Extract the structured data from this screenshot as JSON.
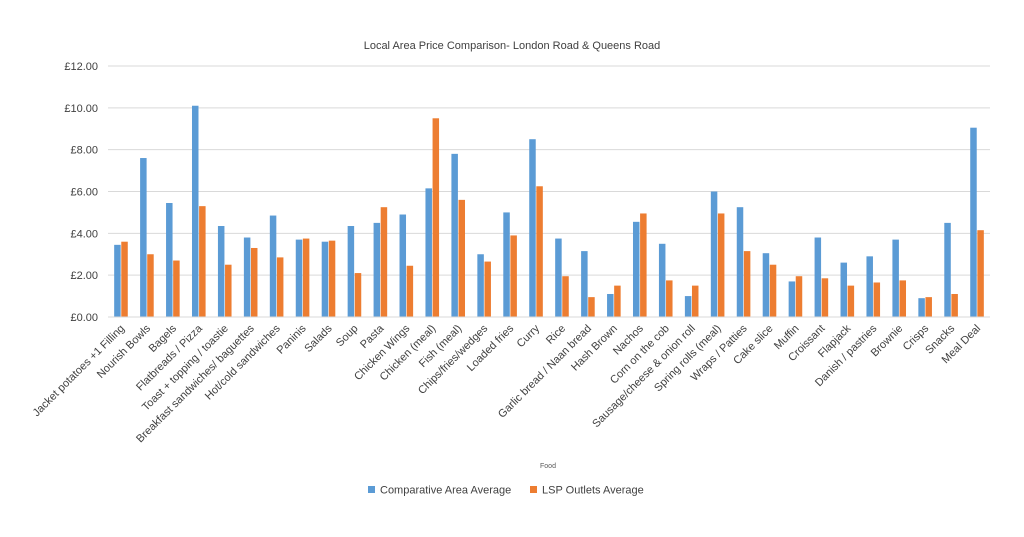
{
  "chart_data": {
    "type": "bar",
    "title": "Local Area Price Comparison- London Road & Queens Road",
    "xlabel": "Food",
    "ylabel": "",
    "ylim": [
      0,
      12
    ],
    "yticks": [
      "£0.00",
      "£2.00",
      "£4.00",
      "£6.00",
      "£8.00",
      "£10.00",
      "£12.00"
    ],
    "grid": true,
    "legend_position": "bottom",
    "categories": [
      "Jacket potatoes +1 Filling",
      "Nourish Bowls",
      "Bagels",
      "Flatbreads / Pizza",
      "Toast + topping / toastie",
      "Breakfast sandwiches/ baguettes",
      "Hot/cold sandwiches",
      "Paninis",
      "Salads",
      "Soup",
      "Pasta",
      "Chicken Wings",
      "Chicken (meal)",
      "Fish (meal)",
      "Chips/fries/wedges",
      "Loaded fries",
      "Curry",
      "Rice",
      "Garlic bread / Naan bread",
      "Hash Brown",
      "Nachos",
      "Corn on the cob",
      "Sausage/cheese & onion roll",
      "Spring rolls (meal)",
      "Wraps / Patties",
      "Cake slice",
      "Muffin",
      "Croissant",
      "Flapjack",
      "Danish / pastries",
      "Brownie",
      "Crisps",
      "Snacks",
      "Meal Deal"
    ],
    "series": [
      {
        "name": "Comparative Area Average",
        "color": "#5b9bd5",
        "values": [
          3.45,
          7.6,
          5.45,
          10.1,
          4.35,
          3.8,
          4.85,
          3.7,
          3.6,
          4.35,
          4.5,
          4.9,
          6.15,
          7.8,
          3.0,
          5.0,
          8.5,
          3.75,
          3.15,
          1.1,
          4.55,
          3.5,
          1.0,
          6.0,
          5.25,
          3.05,
          1.7,
          3.8,
          2.6,
          2.9,
          3.7,
          0.9,
          4.5,
          9.05
        ]
      },
      {
        "name": "LSP Outlets Average",
        "color": "#ed7d31",
        "values": [
          3.6,
          3.0,
          2.7,
          5.3,
          2.5,
          3.3,
          2.85,
          3.75,
          3.65,
          2.1,
          5.25,
          2.45,
          9.5,
          5.6,
          2.65,
          3.9,
          6.25,
          1.95,
          0.95,
          1.5,
          4.95,
          1.75,
          1.5,
          4.95,
          3.15,
          2.5,
          1.95,
          1.85,
          1.5,
          1.65,
          1.75,
          0.95,
          1.1,
          4.15
        ]
      }
    ]
  }
}
